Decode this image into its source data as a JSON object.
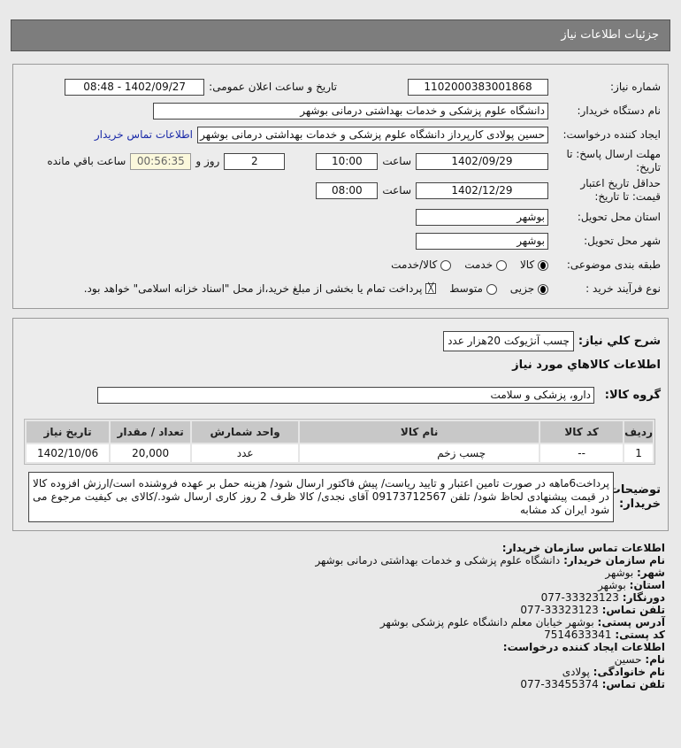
{
  "header": {
    "title": "جزئیات اطلاعات نیاز"
  },
  "form": {
    "need_number_label": "شماره نیاز:",
    "need_number": "1102000383001868",
    "announce_label": "تاریخ و ساعت اعلان عمومی:",
    "announce_value": "1402/09/27 - 08:48",
    "buyer_org_label": "نام دستگاه خریدار:",
    "buyer_org": "دانشگاه علوم پزشکی و خدمات بهداشتی درمانی بوشهر",
    "creator_label": "ایجاد کننده درخواست:",
    "creator": "حسین پولادی کارپرداز دانشگاه علوم پزشکی و خدمات بهداشتی درمانی بوشهر",
    "contact_link": "اطلاعات تماس خریدار",
    "deadline_label": "مهلت ارسال پاسخ: تا تاریخ:",
    "deadline_date": "1402/09/29",
    "time_label": "ساعت",
    "deadline_time": "10:00",
    "days": "2",
    "days_label": "روز و",
    "remaining": "00:56:35",
    "remaining_label": "ساعت باقي مانده",
    "validity_label": "حداقل تاریخ اعتبار قیمت: تا تاریخ:",
    "validity_date": "1402/12/29",
    "validity_time": "08:00",
    "province_label": "استان محل تحویل:",
    "province": "بوشهر",
    "city_label": "شهر محل تحویل:",
    "city": "بوشهر",
    "category_label": "طبقه بندی موضوعی:",
    "category_options": [
      "کالا",
      "خدمت",
      "کالا/خدمت"
    ],
    "category_selected": "کالا",
    "process_label": "نوع فرآیند خرید :",
    "process_options": [
      "جزیی",
      "متوسط"
    ],
    "process_selected": "جزیی",
    "payment_note": "پرداخت تمام یا بخشی از مبلغ خرید،از محل \"اسناد خزانه اسلامی\" خواهد بود."
  },
  "details": {
    "summary_label": "شرح کلي نياز:",
    "summary": "چسب آنژیوکت 20هزار عدد",
    "goods_title": "اطلاعات کالاهاي مورد نياز",
    "group_label": "گروه کالا:",
    "group": "دارو، پزشکی و سلامت",
    "table": {
      "headers": [
        "ردیف",
        "کد کالا",
        "نام کالا",
        "واحد شمارش",
        "تعداد / مقدار",
        "تاریخ نیاز"
      ],
      "rows": [
        [
          "1",
          "--",
          "چسب زخم",
          "عدد",
          "20,000",
          "1402/10/06"
        ]
      ]
    },
    "notes_label": "توضیحات خریدار:",
    "notes": "پرداخت6ماهه در صورت تامین اعتبار و تایید ریاست/ پیش فاکتور ارسال شود/ هزینه حمل بر عهده فروشنده است/ارزش افزوده کالا در قیمت پیشنهادی لحاظ شود/ تلفن 09173712567 آقای نجدی/ کالا ظرف 2 روز کاری ارسال شود./کالای بی کیفیت مرجوع می شود ایران کد مشابه"
  },
  "contact": {
    "title": "اطلاعات تماس سازمان خریدار:",
    "org_label": "نام سازمان خریدار:",
    "org": "دانشگاه علوم پزشکی و خدمات بهداشتی درمانی بوشهر",
    "city_label": "شهر:",
    "city": "بوشهر",
    "province_label": "استان:",
    "province": "بوشهر",
    "fax_label": "دورنگار:",
    "fax": "077-33323123",
    "phone_label": "تلفن تماس:",
    "phone": "077-33323123",
    "address_label": "آدرس پستی:",
    "address": "بوشهر خیابان معلم دانشگاه علوم پزشکی بوشهر",
    "postal_label": "کد پستی:",
    "postal": "7514633341",
    "creator_title": "اطلاعات ایجاد کننده درخواست:",
    "name_label": "نام:",
    "name": "حسین",
    "family_label": "نام خانوادگی:",
    "family": "پولادی",
    "creator_phone_label": "تلفن تماس:",
    "creator_phone": "077-33455374"
  }
}
